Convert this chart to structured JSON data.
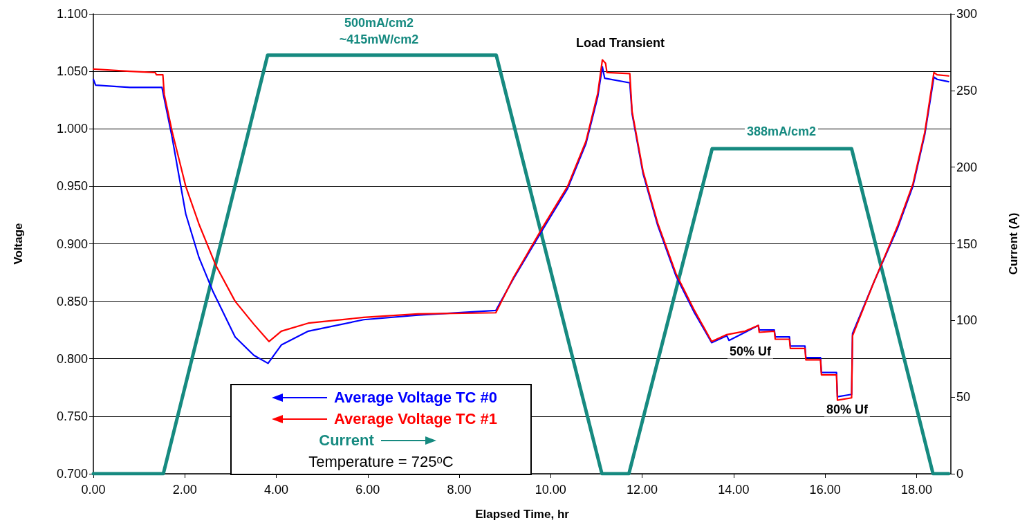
{
  "chart_data": {
    "type": "line",
    "xlabel": "Elapsed Time, hr",
    "ylabel": "Voltage",
    "y2label": "Current (A)",
    "xlim": [
      0,
      18.75
    ],
    "xticks": [
      {
        "value": 0,
        "label": "0.00"
      },
      {
        "value": 2,
        "label": "2.00"
      },
      {
        "value": 4,
        "label": "4.00"
      },
      {
        "value": 6,
        "label": "6.00"
      },
      {
        "value": 8,
        "label": "8.00"
      },
      {
        "value": 10,
        "label": "10.00"
      },
      {
        "value": 12,
        "label": "12.00"
      },
      {
        "value": 14,
        "label": "14.00"
      },
      {
        "value": 16,
        "label": "16.00"
      },
      {
        "value": 18,
        "label": "18.00"
      }
    ],
    "ylim": [
      0.7,
      1.1
    ],
    "yticks": [
      {
        "value": 0.7,
        "label": "0.700"
      },
      {
        "value": 0.75,
        "label": "0.750"
      },
      {
        "value": 0.8,
        "label": "0.800"
      },
      {
        "value": 0.85,
        "label": "0.850"
      },
      {
        "value": 0.9,
        "label": "0.900"
      },
      {
        "value": 0.95,
        "label": "0.950"
      },
      {
        "value": 1.0,
        "label": "1.000"
      },
      {
        "value": 1.05,
        "label": "1.050"
      },
      {
        "value": 1.1,
        "label": "1.100"
      }
    ],
    "y2lim": [
      0,
      300
    ],
    "y2ticks": [
      0,
      50,
      100,
      150,
      200,
      250,
      300
    ],
    "grid": "y",
    "legend": "bottom left",
    "marker": "none",
    "line_style": "solid",
    "series": [
      {
        "name": "Average Voltage TC #0",
        "color": "#0000ff",
        "x": [
          0,
          0.05,
          0.8,
          1.5,
          1.53,
          1.72,
          2.02,
          2.31,
          2.61,
          3.1,
          3.51,
          3.82,
          4.11,
          4.7,
          5.91,
          7.1,
          8.8,
          9.19,
          9.85,
          10.37,
          10.77,
          11.03,
          11.13,
          11.18,
          11.73,
          11.78,
          12.02,
          12.34,
          12.74,
          13.13,
          13.52,
          13.85,
          13.9,
          14.25,
          14.54,
          14.56,
          14.89,
          14.91,
          15.22,
          15.24,
          15.56,
          15.58,
          15.9,
          15.92,
          16.25,
          16.27,
          16.58,
          16.6,
          17.06,
          17.59,
          17.92,
          18.18,
          18.38,
          18.45,
          18.7
        ],
        "values": [
          1.043,
          1.038,
          1.036,
          1.036,
          1.03,
          0.993,
          0.926,
          0.888,
          0.859,
          0.819,
          0.803,
          0.796,
          0.812,
          0.824,
          0.834,
          0.838,
          0.842,
          0.87,
          0.914,
          0.948,
          0.987,
          1.028,
          1.054,
          1.044,
          1.04,
          1.013,
          0.961,
          0.916,
          0.872,
          0.841,
          0.814,
          0.82,
          0.816,
          0.823,
          0.829,
          0.825,
          0.825,
          0.819,
          0.819,
          0.811,
          0.811,
          0.801,
          0.801,
          0.788,
          0.788,
          0.767,
          0.769,
          0.822,
          0.866,
          0.914,
          0.95,
          0.995,
          1.045,
          1.043,
          1.041
        ]
      },
      {
        "name": "Average Voltage TC #1",
        "color": "#ff0000",
        "x": [
          0,
          0.8,
          1.35,
          1.38,
          1.52,
          1.55,
          1.72,
          2.02,
          2.31,
          2.68,
          3.1,
          3.51,
          3.84,
          4.11,
          4.7,
          5.91,
          7.1,
          8.8,
          9.19,
          9.85,
          10.37,
          10.77,
          11.03,
          11.13,
          11.2,
          11.23,
          11.73,
          11.78,
          12.02,
          12.34,
          12.74,
          13.13,
          13.52,
          13.85,
          14.25,
          14.54,
          14.56,
          14.89,
          14.91,
          15.22,
          15.24,
          15.56,
          15.58,
          15.9,
          15.92,
          16.25,
          16.27,
          16.58,
          16.6,
          17.06,
          17.59,
          17.92,
          18.18,
          18.38,
          18.45,
          18.7
        ],
        "values": [
          1.052,
          1.05,
          1.049,
          1.047,
          1.047,
          1.03,
          0.998,
          0.95,
          0.917,
          0.881,
          0.85,
          0.83,
          0.815,
          0.824,
          0.831,
          0.836,
          0.839,
          0.84,
          0.871,
          0.916,
          0.95,
          0.989,
          1.031,
          1.06,
          1.057,
          1.049,
          1.048,
          1.015,
          0.963,
          0.918,
          0.874,
          0.843,
          0.815,
          0.821,
          0.824,
          0.829,
          0.823,
          0.824,
          0.817,
          0.817,
          0.809,
          0.809,
          0.799,
          0.799,
          0.786,
          0.786,
          0.764,
          0.766,
          0.82,
          0.866,
          0.916,
          0.952,
          0.997,
          1.049,
          1.047,
          1.046
        ]
      },
      {
        "name": "Current",
        "color": "#168a80",
        "axis": "y2",
        "x": [
          0,
          1.53,
          3.81,
          8.81,
          11.12,
          11.71,
          13.53,
          16.58,
          18.36,
          18.7
        ],
        "values": [
          0,
          0,
          273,
          273,
          0,
          0,
          212,
          212,
          0,
          0
        ]
      }
    ],
    "annotations": [
      "500mA/cm2",
      "~415mW/cm2",
      "Load Transient",
      "388mA/cm2",
      "50% Uf",
      "80% Uf",
      "Temperature = 725ᵒC"
    ]
  }
}
